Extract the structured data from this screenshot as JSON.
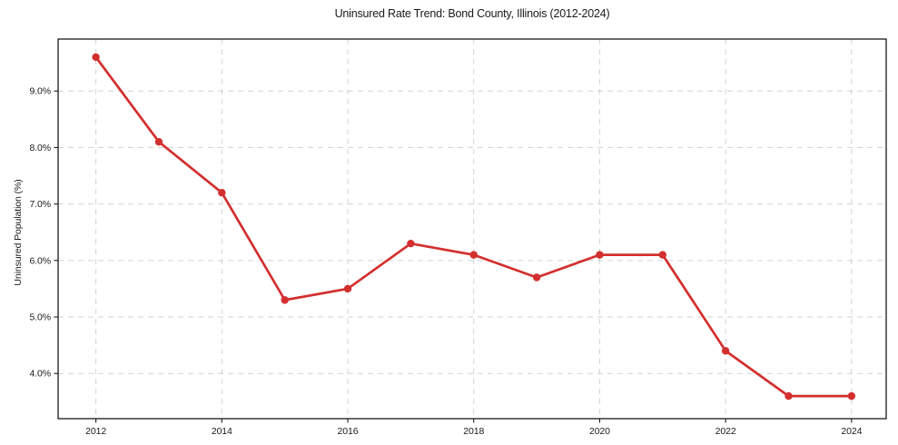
{
  "chart_data": {
    "type": "line",
    "title": "Uninsured Rate Trend: Bond County, Illinois (2012-2024)",
    "xlabel": "",
    "ylabel": "Uninsured Population (%)",
    "x": [
      2012,
      2013,
      2014,
      2015,
      2016,
      2017,
      2018,
      2019,
      2020,
      2021,
      2022,
      2023,
      2024
    ],
    "values": [
      9.6,
      8.1,
      7.2,
      5.3,
      5.5,
      6.3,
      6.1,
      5.7,
      6.1,
      6.1,
      4.4,
      3.6,
      3.6
    ],
    "series_name": "Uninsured rate",
    "xlim": [
      2011.4,
      2024.55
    ],
    "ylim": [
      3.2,
      9.92
    ],
    "x_ticks": [
      2012,
      2014,
      2016,
      2018,
      2020,
      2022,
      2024
    ],
    "x_tick_labels": [
      "2012",
      "2014",
      "2016",
      "2018",
      "2020",
      "2022",
      "2024"
    ],
    "y_ticks": [
      4.0,
      5.0,
      6.0,
      7.0,
      8.0,
      9.0
    ],
    "y_tick_labels": [
      "4.0%",
      "5.0%",
      "6.0%",
      "7.0%",
      "8.0%",
      "9.0%"
    ],
    "grid": true,
    "legend": "none",
    "colors": {
      "line": "#d32f2f",
      "marker": "#d32f2f",
      "grid": "#cccccc",
      "spine": "#1a1a1a",
      "text": "#1a1a1a",
      "background": "#ffffff"
    }
  }
}
